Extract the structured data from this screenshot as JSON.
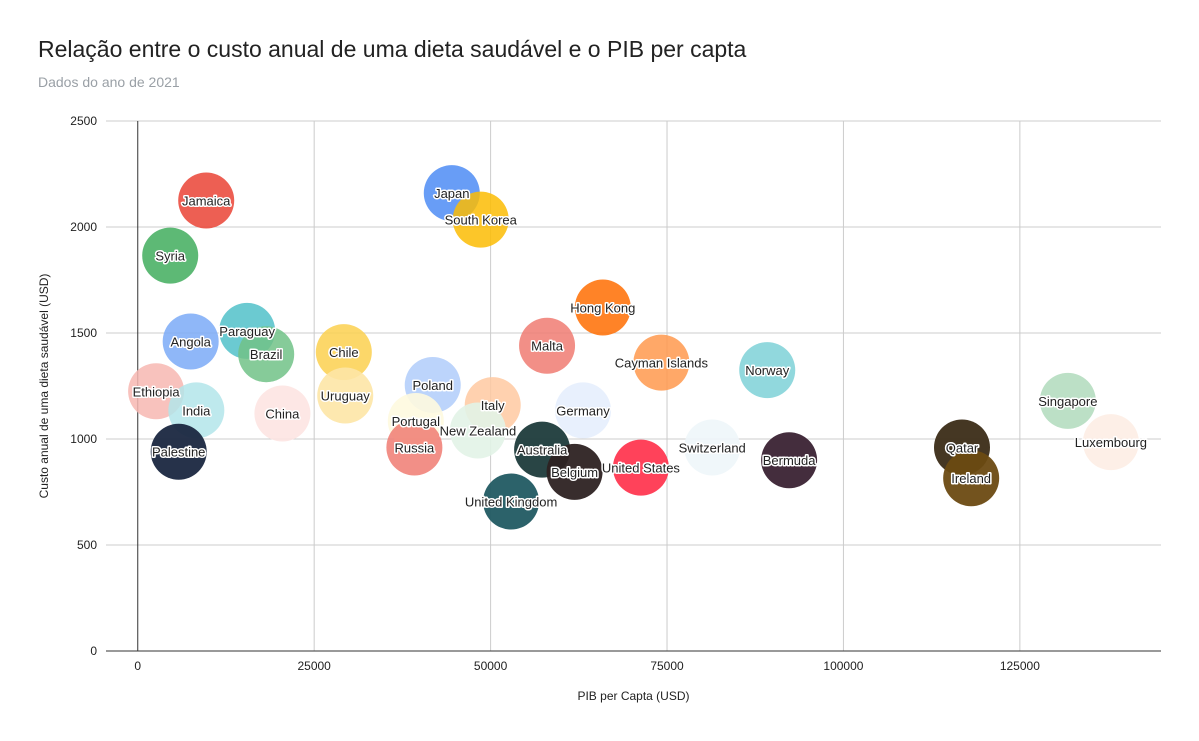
{
  "chart_data": {
    "type": "scatter",
    "title": "Relação entre o custo anual de uma dieta saudável e o PIB per capta",
    "subtitle": "Dados do ano de 2021",
    "xlabel": "PIB per Capta (USD)",
    "ylabel": "Custo anual de uma dieta saudável (USD)",
    "xlim": [
      -4500,
      145000
    ],
    "ylim": [
      0,
      2500
    ],
    "xticks": [
      0,
      25000,
      50000,
      75000,
      100000,
      125000
    ],
    "yticks": [
      0,
      500,
      1000,
      1500,
      2000,
      2500
    ],
    "xtick_labels": [
      "0",
      "25000",
      "50000",
      "75000",
      "100000",
      "125000"
    ],
    "ytick_labels": [
      "0",
      "500",
      "1000",
      "1500",
      "2000",
      "2500"
    ],
    "grid": true,
    "points": [
      {
        "label": "Jamaica",
        "x": 9700,
        "y": 2125,
        "color": "#ea4335",
        "opacity": 0.85
      },
      {
        "label": "Syria",
        "x": 4600,
        "y": 1865,
        "color": "#34a853",
        "opacity": 0.8
      },
      {
        "label": "Japan",
        "x": 44500,
        "y": 2160,
        "color": "#4285f4",
        "opacity": 0.8
      },
      {
        "label": "South Korea",
        "x": 48600,
        "y": 2035,
        "color": "#fbbc04",
        "opacity": 0.85
      },
      {
        "label": "Hong Kong",
        "x": 65900,
        "y": 1620,
        "color": "#ff6d01",
        "opacity": 0.85
      },
      {
        "label": "Paraguay",
        "x": 15500,
        "y": 1510,
        "color": "#46bdc6",
        "opacity": 0.8
      },
      {
        "label": "Angola",
        "x": 7500,
        "y": 1460,
        "color": "#7baaf7",
        "opacity": 0.85
      },
      {
        "label": "Brazil",
        "x": 18200,
        "y": 1400,
        "color": "#71c287",
        "opacity": 0.85
      },
      {
        "label": "Chile",
        "x": 29200,
        "y": 1410,
        "color": "#fcd04f",
        "opacity": 0.85
      },
      {
        "label": "Malta",
        "x": 58000,
        "y": 1440,
        "color": "#f07b72",
        "opacity": 0.85
      },
      {
        "label": "Cayman Islands",
        "x": 74200,
        "y": 1360,
        "color": "#ff994d",
        "opacity": 0.85
      },
      {
        "label": "Norway",
        "x": 89200,
        "y": 1325,
        "color": "#7ed1d7",
        "opacity": 0.85
      },
      {
        "label": "Ethiopia",
        "x": 2600,
        "y": 1225,
        "color": "#f7b7b2",
        "opacity": 0.85
      },
      {
        "label": "India",
        "x": 8300,
        "y": 1135,
        "color": "#b3e5ea",
        "opacity": 0.85
      },
      {
        "label": "China",
        "x": 20500,
        "y": 1120,
        "color": "#fde4e2",
        "opacity": 0.9
      },
      {
        "label": "Uruguay",
        "x": 29400,
        "y": 1205,
        "color": "#fde6a6",
        "opacity": 0.9
      },
      {
        "label": "Poland",
        "x": 41800,
        "y": 1255,
        "color": "#b0ccfa",
        "opacity": 0.85
      },
      {
        "label": "Italy",
        "x": 50300,
        "y": 1160,
        "color": "#ffc9a1",
        "opacity": 0.85
      },
      {
        "label": "Germany",
        "x": 63100,
        "y": 1135,
        "color": "#e6eefd",
        "opacity": 0.9
      },
      {
        "label": "Portugal",
        "x": 39400,
        "y": 1085,
        "color": "#fef9df",
        "opacity": 0.9
      },
      {
        "label": "New Zealand",
        "x": 48200,
        "y": 1040,
        "color": "#e2f3e7",
        "opacity": 0.9
      },
      {
        "label": "Singapore",
        "x": 131800,
        "y": 1180,
        "color": "#b5ddc0",
        "opacity": 0.9
      },
      {
        "label": "Luxembourg",
        "x": 137900,
        "y": 985,
        "color": "#fdede4",
        "opacity": 0.9
      },
      {
        "label": "Palestine",
        "x": 5800,
        "y": 940,
        "color": "#1a2740",
        "opacity": 0.95
      },
      {
        "label": "Russia",
        "x": 39200,
        "y": 960,
        "color": "#f07b72",
        "opacity": 0.85
      },
      {
        "label": "Australia",
        "x": 57300,
        "y": 950,
        "color": "#1e3b3b",
        "opacity": 0.95
      },
      {
        "label": "Switzerland",
        "x": 81400,
        "y": 960,
        "color": "#eef6f9",
        "opacity": 0.9
      },
      {
        "label": "Bermuda",
        "x": 92300,
        "y": 900,
        "color": "#3a2233",
        "opacity": 0.95
      },
      {
        "label": "Qatar",
        "x": 116800,
        "y": 960,
        "color": "#3b2c17",
        "opacity": 0.95
      },
      {
        "label": "Ireland",
        "x": 118100,
        "y": 815,
        "color": "#6b4a12",
        "opacity": 0.95
      },
      {
        "label": "Belgium",
        "x": 61900,
        "y": 845,
        "color": "#2d2222",
        "opacity": 0.95
      },
      {
        "label": "United States",
        "x": 71300,
        "y": 865,
        "color": "#ff2d48",
        "opacity": 0.9
      },
      {
        "label": "United Kingdom",
        "x": 52900,
        "y": 705,
        "color": "#215a62",
        "opacity": 0.95
      }
    ]
  }
}
